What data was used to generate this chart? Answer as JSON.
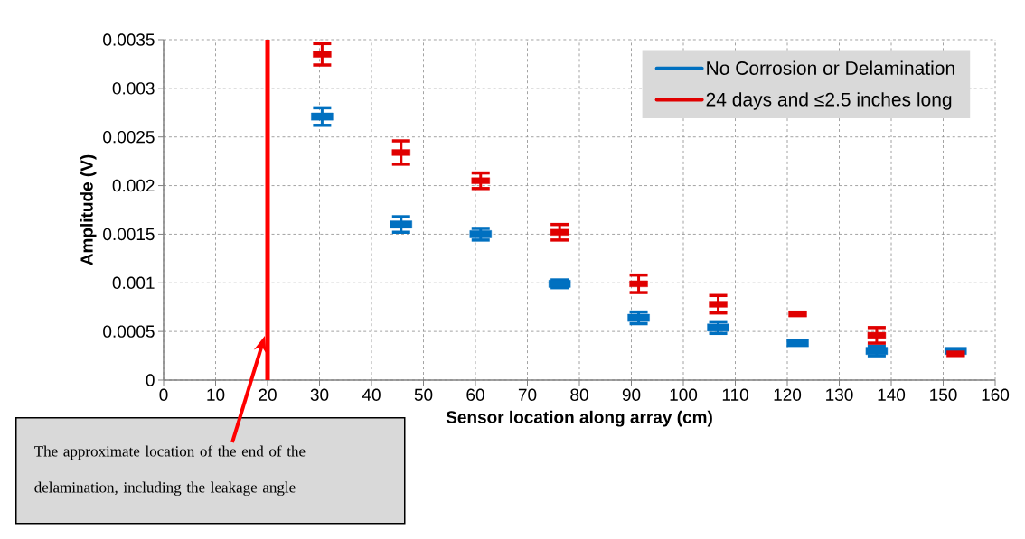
{
  "chart_data": {
    "type": "scatter",
    "xlabel": "Sensor location along array (cm)",
    "ylabel": "Amplitude (V)",
    "x": [
      30.5,
      45.7,
      61,
      76.2,
      91.4,
      106.7,
      122,
      137.2,
      152.4
    ],
    "series": [
      {
        "name": "No Corrosion or Delamination",
        "color": "#0070c0",
        "values": [
          0.00271,
          0.0016,
          0.0015,
          0.00099,
          0.00064,
          0.00054,
          0.00038,
          0.0003,
          0.0003
        ],
        "errors": [
          9e-05,
          8e-05,
          6e-05,
          4e-05,
          6e-05,
          6e-05,
          null,
          5e-05,
          null
        ]
      },
      {
        "name": "24 days and ≤2.5 inches long",
        "color": "#e00000",
        "values": [
          0.00335,
          0.00234,
          0.00205,
          0.00152,
          0.00099,
          0.00078,
          0.00068,
          0.00046,
          0.00027
        ],
        "errors": [
          0.00011,
          0.00012,
          8e-05,
          8e-05,
          9e-05,
          9e-05,
          null,
          8e-05,
          null
        ]
      }
    ],
    "xlim": [
      0,
      160
    ],
    "xticks": [
      0,
      10,
      20,
      30,
      40,
      50,
      60,
      70,
      80,
      90,
      100,
      110,
      120,
      130,
      140,
      150,
      160
    ],
    "ylim": [
      0,
      0.0035
    ],
    "yticks": [
      0,
      0.0005,
      0.001,
      0.0015,
      0.002,
      0.0025,
      0.003,
      0.0035
    ],
    "ref_lines": [
      {
        "axis": "x",
        "value": 20,
        "label": "The approximate location of the end of the delamination, including the leakage angle",
        "color": "#ff0000"
      }
    ],
    "grid": true,
    "legend": "top right",
    "marker": "square"
  }
}
